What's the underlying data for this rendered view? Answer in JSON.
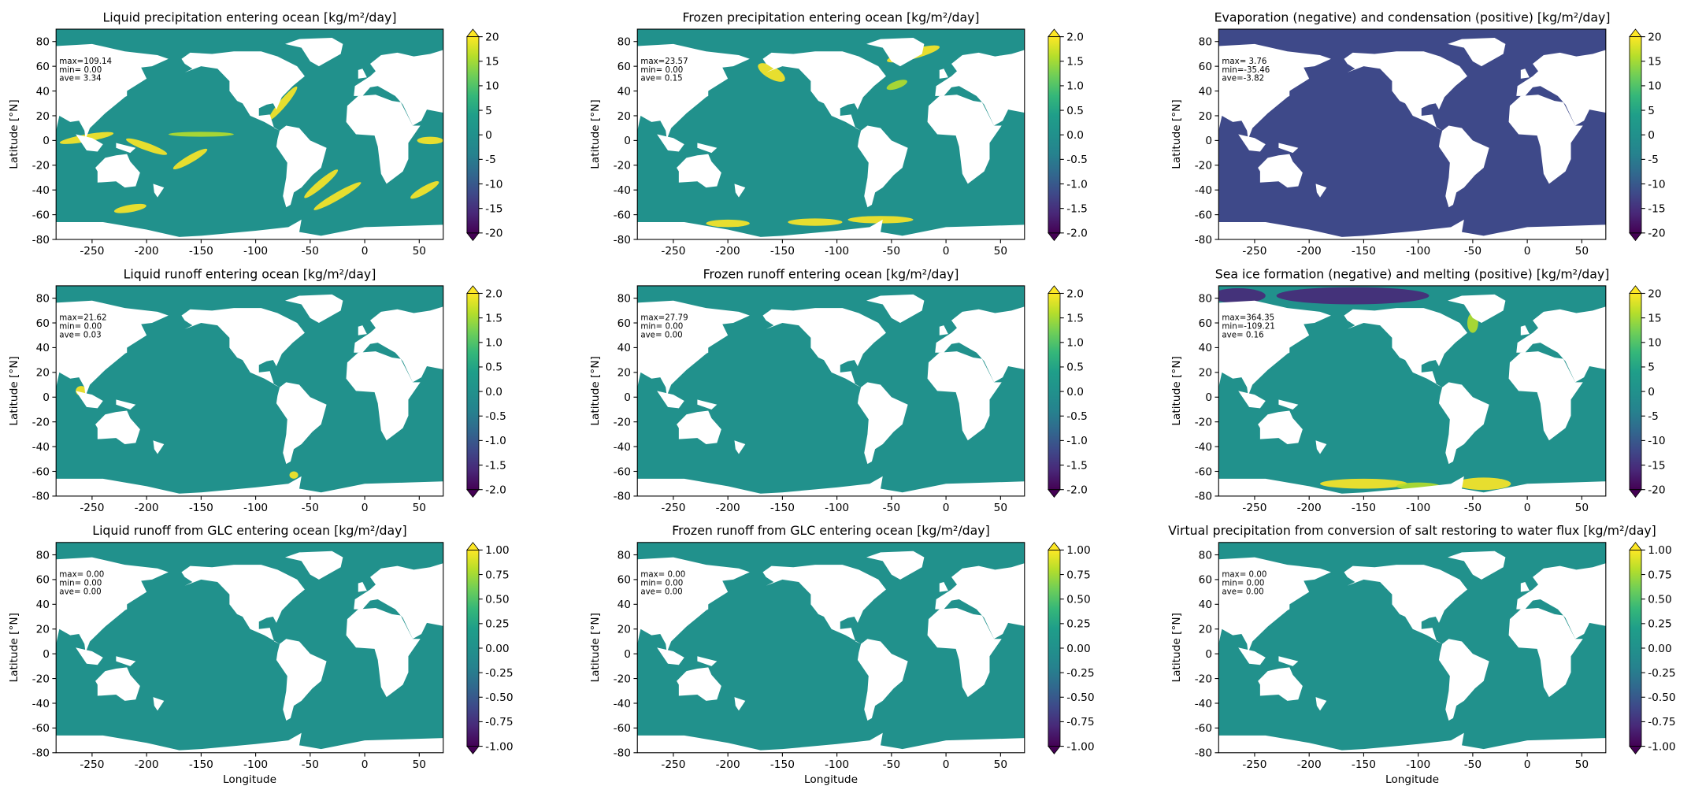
{
  "chart_data": [
    {
      "type": "map",
      "title": "Liquid precipitation entering ocean [kg/m²/day]",
      "ylabel": "Latitude [°N]",
      "cmap": "viridis",
      "stats": [
        "max=109.14",
        "min= 0.00",
        "ave= 3.34"
      ],
      "xlim": [
        -283,
        72
      ],
      "xticks": [
        -250,
        -200,
        -150,
        -100,
        -50,
        0,
        50
      ],
      "ylim": [
        -80,
        90
      ],
      "yticks": [
        -80,
        -60,
        -40,
        -20,
        0,
        20,
        40,
        60,
        80
      ],
      "clim": [
        -20,
        20
      ],
      "cticks": [
        -20,
        -15,
        -10,
        -5,
        0,
        5,
        10,
        15,
        20
      ]
    },
    {
      "type": "map",
      "title": "Frozen precipitation entering ocean [kg/m²/day]",
      "ylabel": "Latitude [°N]",
      "cmap": "viridis",
      "stats": [
        "max=23.57",
        "min= 0.00",
        "ave= 0.15"
      ],
      "xlim": [
        -283,
        72
      ],
      "xticks": [
        -250,
        -200,
        -150,
        -100,
        -50,
        0,
        50
      ],
      "ylim": [
        -80,
        90
      ],
      "yticks": [
        -80,
        -60,
        -40,
        -20,
        0,
        20,
        40,
        60,
        80
      ],
      "clim": [
        -2,
        2
      ],
      "cticks": [
        {
          "value": -2,
          "label": "-2.0"
        },
        -1.5,
        {
          "value": -1,
          "label": "-1.0"
        },
        -0.5,
        {
          "value": 0,
          "label": "0.0"
        },
        0.5,
        {
          "value": 1,
          "label": "1.0"
        },
        1.5,
        {
          "value": 2,
          "label": "2.0"
        }
      ]
    },
    {
      "type": "map",
      "title": "Evaporation (negative) and condensation (positive) [kg/m²/day]",
      "ylabel": "Latitude [°N]",
      "cmap": "viridis",
      "stats": [
        "max= 3.76",
        "min=-35.46",
        "ave=-3.82"
      ],
      "xlim": [
        -283,
        72
      ],
      "xticks": [
        -250,
        -200,
        -150,
        -100,
        -50,
        0,
        50
      ],
      "ylim": [
        -80,
        90
      ],
      "yticks": [
        -80,
        -60,
        -40,
        -20,
        0,
        20,
        40,
        60,
        80
      ],
      "clim": [
        -20,
        20
      ],
      "cticks": [
        -20,
        -15,
        -10,
        -5,
        0,
        5,
        10,
        15,
        20
      ]
    },
    {
      "type": "map",
      "title": "Liquid runoff entering ocean [kg/m²/day]",
      "ylabel": "Latitude [°N]",
      "cmap": "viridis",
      "stats": [
        "max=21.62",
        "min= 0.00",
        "ave= 0.03"
      ],
      "xlim": [
        -283,
        72
      ],
      "xticks": [
        -250,
        -200,
        -150,
        -100,
        -50,
        0,
        50
      ],
      "ylim": [
        -80,
        90
      ],
      "yticks": [
        -80,
        -60,
        -40,
        -20,
        0,
        20,
        40,
        60,
        80
      ],
      "clim": [
        -2,
        2
      ],
      "cticks": [
        {
          "value": -2,
          "label": "-2.0"
        },
        -1.5,
        {
          "value": -1,
          "label": "-1.0"
        },
        -0.5,
        {
          "value": 0,
          "label": "0.0"
        },
        0.5,
        {
          "value": 1,
          "label": "1.0"
        },
        1.5,
        {
          "value": 2,
          "label": "2.0"
        }
      ]
    },
    {
      "type": "map",
      "title": "Frozen runoff entering ocean [kg/m²/day]",
      "ylabel": "Latitude [°N]",
      "cmap": "viridis",
      "stats": [
        "max=27.79",
        "min= 0.00",
        "ave= 0.00"
      ],
      "xlim": [
        -283,
        72
      ],
      "xticks": [
        -250,
        -200,
        -150,
        -100,
        -50,
        0,
        50
      ],
      "ylim": [
        -80,
        90
      ],
      "yticks": [
        -80,
        -60,
        -40,
        -20,
        0,
        20,
        40,
        60,
        80
      ],
      "clim": [
        -2,
        2
      ],
      "cticks": [
        {
          "value": -2,
          "label": "-2.0"
        },
        -1.5,
        {
          "value": -1,
          "label": "-1.0"
        },
        -0.5,
        {
          "value": 0,
          "label": "0.0"
        },
        0.5,
        {
          "value": 1,
          "label": "1.0"
        },
        1.5,
        {
          "value": 2,
          "label": "2.0"
        }
      ]
    },
    {
      "type": "map",
      "title": "Sea ice formation (negative) and melting (positive) [kg/m²/day]",
      "ylabel": "Latitude [°N]",
      "cmap": "viridis",
      "stats": [
        "max=364.35",
        "min=-109.21",
        "ave= 0.16"
      ],
      "xlim": [
        -283,
        72
      ],
      "xticks": [
        -250,
        -200,
        -150,
        -100,
        -50,
        0,
        50
      ],
      "ylim": [
        -80,
        90
      ],
      "yticks": [
        -80,
        -60,
        -40,
        -20,
        0,
        20,
        40,
        60,
        80
      ],
      "clim": [
        -20,
        20
      ],
      "cticks": [
        -20,
        -15,
        -10,
        -5,
        0,
        5,
        10,
        15,
        20
      ]
    },
    {
      "type": "map",
      "title": "Liquid runoff from GLC entering ocean [kg/m²/day]",
      "xlabel": "Longitude",
      "ylabel": "Latitude [°N]",
      "cmap": "viridis",
      "stats": [
        "max= 0.00",
        "min= 0.00",
        "ave= 0.00"
      ],
      "xlim": [
        -283,
        72
      ],
      "xticks": [
        -250,
        -200,
        -150,
        -100,
        -50,
        0,
        50
      ],
      "ylim": [
        -80,
        90
      ],
      "yticks": [
        -80,
        -60,
        -40,
        -20,
        0,
        20,
        40,
        60,
        80
      ],
      "clim": [
        -1,
        1
      ],
      "cticks": [
        {
          "value": -1,
          "label": "-1.00"
        },
        -0.75,
        {
          "value": -0.5,
          "label": "-0.50"
        },
        -0.25,
        {
          "value": 0,
          "label": "0.00"
        },
        0.25,
        {
          "value": 0.5,
          "label": "0.50"
        },
        0.75,
        {
          "value": 1,
          "label": "1.00"
        }
      ]
    },
    {
      "type": "map",
      "title": "Frozen runoff from GLC entering ocean [kg/m²/day]",
      "xlabel": "Longitude",
      "ylabel": "Latitude [°N]",
      "cmap": "viridis",
      "stats": [
        "max= 0.00",
        "min= 0.00",
        "ave= 0.00"
      ],
      "xlim": [
        -283,
        72
      ],
      "xticks": [
        -250,
        -200,
        -150,
        -100,
        -50,
        0,
        50
      ],
      "ylim": [
        -80,
        90
      ],
      "yticks": [
        -80,
        -60,
        -40,
        -20,
        0,
        20,
        40,
        60,
        80
      ],
      "clim": [
        -1,
        1
      ],
      "cticks": [
        {
          "value": -1,
          "label": "-1.00"
        },
        -0.75,
        {
          "value": -0.5,
          "label": "-0.50"
        },
        -0.25,
        {
          "value": 0,
          "label": "0.00"
        },
        0.25,
        {
          "value": 0.5,
          "label": "0.50"
        },
        0.75,
        {
          "value": 1,
          "label": "1.00"
        }
      ]
    },
    {
      "type": "map",
      "title": "Virtual precipitation from conversion of salt restoring to water flux [kg/m²/day]",
      "xlabel": "Longitude",
      "ylabel": "Latitude [°N]",
      "cmap": "viridis",
      "stats": [
        "max= 0.00",
        "min= 0.00",
        "ave= 0.00"
      ],
      "xlim": [
        -283,
        72
      ],
      "xticks": [
        -250,
        -200,
        -150,
        -100,
        -50,
        0,
        50
      ],
      "ylim": [
        -80,
        90
      ],
      "yticks": [
        -80,
        -60,
        -40,
        -20,
        0,
        20,
        40,
        60,
        80
      ],
      "clim": [
        -1,
        1
      ],
      "cticks": [
        {
          "value": -1,
          "label": "-1.00"
        },
        -0.75,
        {
          "value": -0.5,
          "label": "-0.50"
        },
        -0.25,
        {
          "value": 0,
          "label": "0.00"
        },
        0.25,
        {
          "value": 0.5,
          "label": "0.50"
        },
        0.75,
        {
          "value": 1,
          "label": "1.00"
        }
      ]
    }
  ]
}
